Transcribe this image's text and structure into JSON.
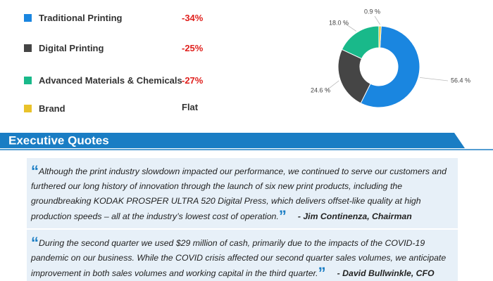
{
  "chart_data": {
    "type": "pie",
    "categories": [
      "Traditional Printing",
      "Digital Printing",
      "Advanced Materials & Chemicals",
      "Brand"
    ],
    "values": [
      56.4,
      24.6,
      18.0,
      0.9
    ],
    "value_labels": [
      "56.4 %",
      "24.6 %",
      "18.0 %",
      "0.9 %"
    ],
    "colors": [
      "#1a86e0",
      "#454545",
      "#19b98a",
      "#e9c22a"
    ],
    "changes": [
      "-34%",
      "-25%",
      "-27%",
      "Flat"
    ]
  },
  "section_title": "Executive Quotes",
  "quote_marks": {
    "open": "“",
    "close": "”"
  },
  "quotes": [
    {
      "text": "Although the print industry slowdown impacted our performance, we continued to serve our customers and furthered our long history of innovation through the launch of six new print products, including the groundbreaking KODAK PROSPER ULTRA 520 Digital Press, which delivers offset-like quality at high production speeds – all at the industry’s lowest cost of operation.",
      "attribution": "- Jim Continenza, Chairman"
    },
    {
      "text": "During the second quarter we used $29 million of cash, primarily due to the impacts of the COVID-19 pandemic on our business. While the COVID crisis affected our second quarter sales volumes, we anticipate improvement in both sales volumes and working capital in the third quarter.",
      "attribution": "- David Bullwinkle, CFO"
    }
  ]
}
